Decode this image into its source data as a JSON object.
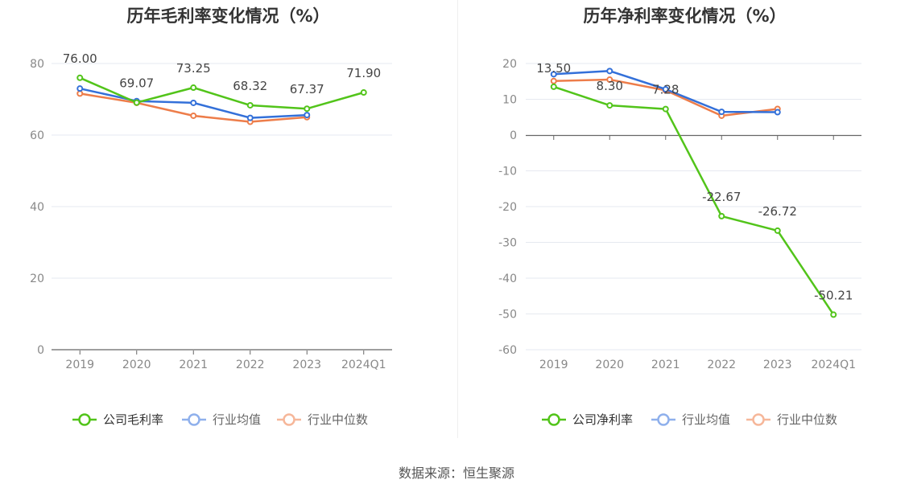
{
  "charts": [
    {
      "title": "历年毛利率变化情况（%）",
      "chart_data": {
        "type": "line",
        "categories": [
          "2019",
          "2020",
          "2021",
          "2022",
          "2023",
          "2024Q1"
        ],
        "ylim": [
          0,
          80
        ],
        "yticks": [
          0,
          20,
          40,
          60,
          80
        ],
        "grid": true,
        "legend_position": "bottom",
        "series": [
          {
            "name": "公司毛利率",
            "color": "#52c41a",
            "values": [
              76.0,
              69.07,
              73.25,
              68.32,
              67.37,
              71.9
            ],
            "labels": [
              "76.00",
              "69.07",
              "73.25",
              "68.32",
              "67.37",
              "71.90"
            ]
          },
          {
            "name": "行业均值",
            "color": "#3370d9",
            "values": [
              73.0,
              69.5,
              69.0,
              64.8,
              65.6,
              null
            ]
          },
          {
            "name": "行业中位数",
            "color": "#ed7d4a",
            "values": [
              71.6,
              69.0,
              65.4,
              63.7,
              65.0,
              null
            ]
          }
        ]
      }
    },
    {
      "title": "历年净利率变化情况（%）",
      "chart_data": {
        "type": "line",
        "categories": [
          "2019",
          "2020",
          "2021",
          "2022",
          "2023",
          "2024Q1"
        ],
        "ylim": [
          -60,
          20
        ],
        "yticks": [
          -60,
          -50,
          -40,
          -30,
          -20,
          -10,
          0,
          10,
          20
        ],
        "grid": true,
        "legend_position": "bottom",
        "series": [
          {
            "name": "公司净利率",
            "color": "#52c41a",
            "values": [
              13.5,
              8.3,
              7.28,
              -22.67,
              -26.72,
              -50.21
            ],
            "labels": [
              "13.50",
              "8.30",
              "7.28",
              "-22.67",
              "-26.72",
              "-50.21"
            ]
          },
          {
            "name": "行业均值",
            "color": "#3370d9",
            "values": [
              17.0,
              17.9,
              12.8,
              6.5,
              6.4,
              null
            ]
          },
          {
            "name": "行业中位数",
            "color": "#ed7d4a",
            "values": [
              15.1,
              15.5,
              12.5,
              5.4,
              7.3,
              null
            ]
          }
        ]
      }
    }
  ],
  "source": "数据来源：恒生聚源"
}
